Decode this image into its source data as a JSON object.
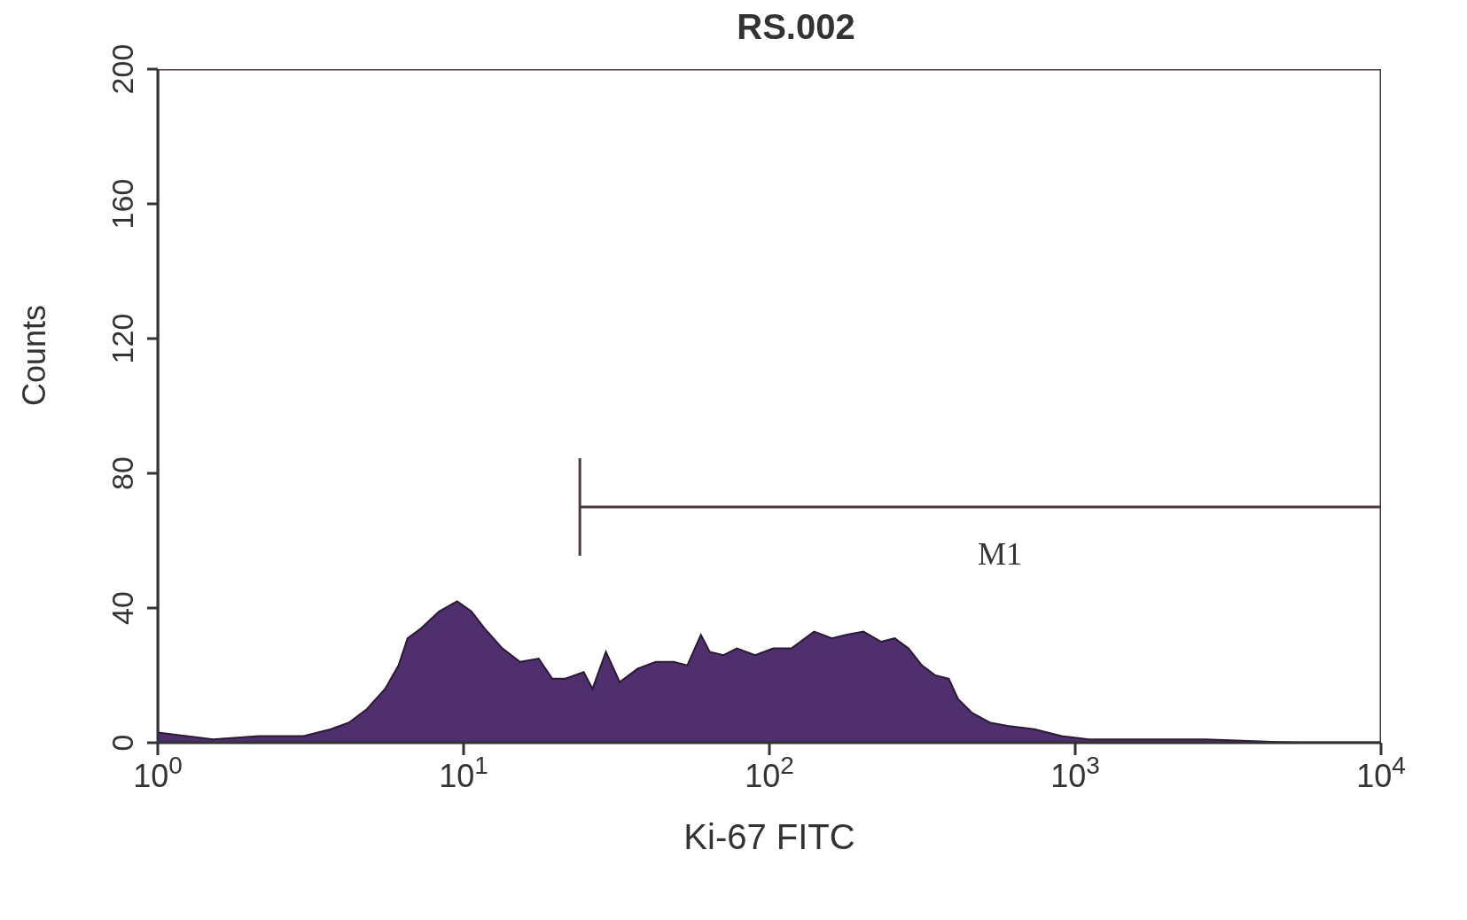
{
  "chart_data": {
    "type": "area",
    "title": "RS.002",
    "xlabel": "Ki-67 FITC",
    "ylabel": "Counts",
    "x": [
      1,
      1.52,
      2.14,
      3.0,
      3.68,
      4.22,
      4.83,
      5.54,
      6.13,
      6.56,
      7.27,
      8.32,
      9.53,
      10.6,
      11.7,
      13.4,
      15.3,
      17.6,
      19.5,
      21.5,
      24.7,
      26.4,
      29.2,
      32.4,
      37.1,
      42.5,
      48.7,
      53.9,
      59.7,
      63.8,
      70.8,
      78.3,
      89.8,
      103,
      118,
      140,
      160,
      177,
      203,
      232,
      257,
      285,
      315,
      349,
      386,
      414,
      458,
      525,
      601,
      736,
      903,
      1110,
      1560,
      2680,
      5280,
      10000
    ],
    "series": [
      {
        "color": "#4f2f6e",
        "values": [
          3,
          1,
          2,
          2,
          4,
          6,
          10,
          16,
          23,
          31,
          34,
          39,
          42,
          39,
          34,
          28,
          24,
          25,
          19,
          19,
          21,
          16,
          27,
          18,
          22,
          24,
          24,
          23,
          32,
          27,
          26,
          28,
          26,
          28,
          28,
          33,
          31,
          32,
          33,
          30,
          31,
          28,
          23,
          20,
          19,
          13,
          9,
          6,
          5,
          4,
          2,
          1,
          1,
          1,
          0,
          0
        ]
      },
      {
        "type": "line",
        "name": "M1",
        "color": "#4a3a40",
        "x": [
          24,
          10000
        ],
        "values": [
          70,
          70
        ]
      }
    ],
    "log": "x",
    "xlim": [
      1,
      10000
    ],
    "ylim": [
      0,
      200
    ],
    "xticks": [
      {
        "value": 1,
        "label": "10$^{0}$"
      },
      {
        "value": 10,
        "label": "10$^{1}$"
      },
      {
        "value": 100,
        "label": "10$^{2}$"
      },
      {
        "value": 1000,
        "label": "10$^{3}$"
      },
      {
        "value": 10000,
        "label": "10$^{4}$"
      }
    ],
    "yticks": [
      0,
      40,
      80,
      120,
      160,
      200
    ]
  }
}
